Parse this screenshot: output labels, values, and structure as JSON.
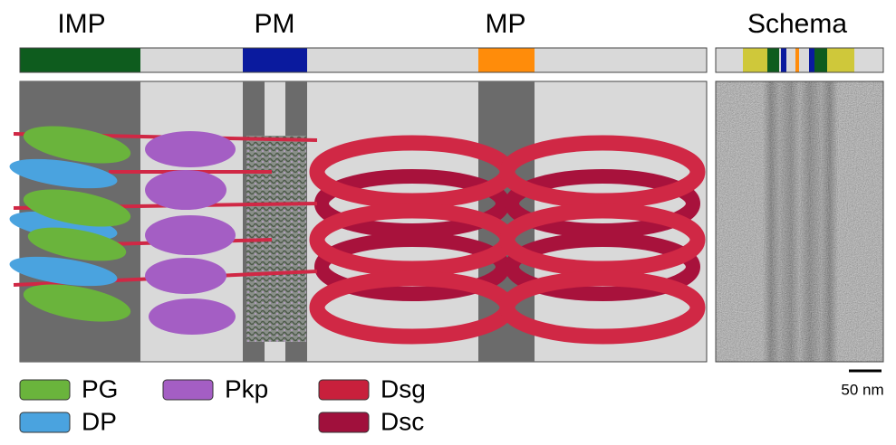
{
  "regions": [
    {
      "label": "IMP"
    },
    {
      "label": "PM"
    },
    {
      "label": "MP"
    }
  ],
  "schema": {
    "label": "Schema"
  },
  "legend": [
    {
      "label": "PG"
    },
    {
      "label": "DP"
    },
    {
      "label": "Pkp"
    },
    {
      "label": "Dsg"
    },
    {
      "label": "Dsc"
    }
  ],
  "scale_bar": {
    "label": "50 nm"
  }
}
